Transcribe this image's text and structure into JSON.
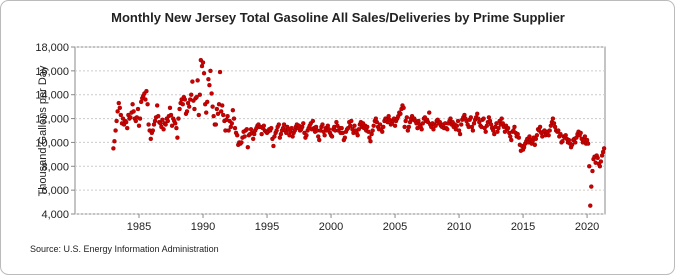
{
  "chart_data": {
    "type": "scatter",
    "title": "Monthly New Jersey Total Gasoline All Sales/Deliveries by Prime Supplier",
    "y_label": "Thousand Gallons per Day",
    "source": "Source: U.S. Energy Information Administration",
    "color": "#cc0000",
    "grid": true,
    "xlim": [
      1980,
      2021.4
    ],
    "xticks": [
      1985,
      1990,
      1995,
      2000,
      2005,
      2010,
      2015,
      2020
    ],
    "ylim": [
      4000,
      18000
    ],
    "yticks": [
      {
        "value": 4000,
        "label": "4,000"
      },
      {
        "value": 6000,
        "label": "6,000"
      },
      {
        "value": 8000,
        "label": "8,000"
      },
      {
        "value": 10000,
        "label": "10,000"
      },
      {
        "value": 12000,
        "label": "12,000"
      },
      {
        "value": 14000,
        "label": "14,000"
      },
      {
        "value": 16000,
        "label": "16,000"
      },
      {
        "value": 18000,
        "label": "18,000"
      }
    ],
    "x": [
      1983,
      1983.08,
      1983.17,
      1983.25,
      1983.33,
      1983.42,
      1983.5,
      1983.58,
      1983.67,
      1983.75,
      1983.83,
      1983.92,
      1984,
      1984.08,
      1984.17,
      1984.25,
      1984.33,
      1984.42,
      1984.5,
      1984.58,
      1984.67,
      1984.75,
      1984.83,
      1984.92,
      1985,
      1985.08,
      1985.17,
      1985.25,
      1985.33,
      1985.42,
      1985.5,
      1985.58,
      1985.67,
      1985.75,
      1985.83,
      1985.92,
      1986,
      1986.08,
      1986.17,
      1986.25,
      1986.33,
      1986.42,
      1986.5,
      1986.58,
      1986.67,
      1986.75,
      1986.83,
      1986.92,
      1987,
      1987.08,
      1987.17,
      1987.25,
      1987.33,
      1987.42,
      1987.5,
      1987.58,
      1987.67,
      1987.75,
      1987.83,
      1987.92,
      1988,
      1988.08,
      1988.17,
      1988.25,
      1988.33,
      1988.42,
      1988.5,
      1988.58,
      1988.67,
      1988.75,
      1988.83,
      1988.92,
      1989,
      1989.08,
      1989.17,
      1989.25,
      1989.33,
      1989.42,
      1989.5,
      1989.58,
      1989.67,
      1989.75,
      1989.83,
      1989.92,
      1990,
      1990.08,
      1990.17,
      1990.25,
      1990.33,
      1990.42,
      1990.5,
      1990.58,
      1990.67,
      1990.75,
      1990.83,
      1990.92,
      1991,
      1991.08,
      1991.17,
      1991.25,
      1991.33,
      1991.42,
      1991.5,
      1991.58,
      1991.67,
      1991.75,
      1991.83,
      1991.92,
      1992,
      1992.08,
      1992.17,
      1992.25,
      1992.33,
      1992.42,
      1992.5,
      1992.58,
      1992.67,
      1992.75,
      1992.83,
      1992.92,
      1993,
      1993.08,
      1993.17,
      1993.25,
      1993.33,
      1993.42,
      1993.5,
      1993.58,
      1993.67,
      1993.75,
      1993.83,
      1993.92,
      1994,
      1994.08,
      1994.17,
      1994.25,
      1994.33,
      1994.42,
      1994.5,
      1994.58,
      1994.67,
      1994.75,
      1994.83,
      1994.92,
      1995,
      1995.08,
      1995.17,
      1995.25,
      1995.33,
      1995.42,
      1995.5,
      1995.58,
      1995.67,
      1995.75,
      1995.83,
      1995.92,
      1996,
      1996.08,
      1996.17,
      1996.25,
      1996.33,
      1996.42,
      1996.5,
      1996.58,
      1996.67,
      1996.75,
      1996.83,
      1996.92,
      1997,
      1997.08,
      1997.17,
      1997.25,
      1997.33,
      1997.42,
      1997.5,
      1997.58,
      1997.67,
      1997.75,
      1997.83,
      1997.92,
      1998,
      1998.08,
      1998.17,
      1998.25,
      1998.33,
      1998.42,
      1998.5,
      1998.58,
      1998.67,
      1998.75,
      1998.83,
      1998.92,
      1999,
      1999.08,
      1999.17,
      1999.25,
      1999.33,
      1999.42,
      1999.5,
      1999.58,
      1999.67,
      1999.75,
      1999.83,
      1999.92,
      2000,
      2000.08,
      2000.17,
      2000.25,
      2000.33,
      2000.42,
      2000.5,
      2000.58,
      2000.67,
      2000.75,
      2000.83,
      2000.92,
      2001,
      2001.08,
      2001.17,
      2001.25,
      2001.33,
      2001.42,
      2001.5,
      2001.58,
      2001.67,
      2001.75,
      2001.83,
      2001.92,
      2002,
      2002.08,
      2002.17,
      2002.25,
      2002.33,
      2002.42,
      2002.5,
      2002.58,
      2002.67,
      2002.75,
      2002.83,
      2002.92,
      2003,
      2003.08,
      2003.17,
      2003.25,
      2003.33,
      2003.42,
      2003.5,
      2003.58,
      2003.67,
      2003.75,
      2003.83,
      2003.92,
      2004,
      2004.08,
      2004.17,
      2004.25,
      2004.33,
      2004.42,
      2004.5,
      2004.58,
      2004.67,
      2004.75,
      2004.83,
      2004.92,
      2005,
      2005.08,
      2005.17,
      2005.25,
      2005.33,
      2005.42,
      2005.5,
      2005.58,
      2005.67,
      2005.75,
      2005.83,
      2005.92,
      2006,
      2006.08,
      2006.17,
      2006.25,
      2006.33,
      2006.42,
      2006.5,
      2006.58,
      2006.67,
      2006.75,
      2006.83,
      2006.92,
      2007,
      2007.08,
      2007.17,
      2007.25,
      2007.33,
      2007.42,
      2007.5,
      2007.58,
      2007.67,
      2007.75,
      2007.83,
      2007.92,
      2008,
      2008.08,
      2008.17,
      2008.25,
      2008.33,
      2008.42,
      2008.5,
      2008.58,
      2008.67,
      2008.75,
      2008.83,
      2008.92,
      2009,
      2009.08,
      2009.17,
      2009.25,
      2009.33,
      2009.42,
      2009.5,
      2009.58,
      2009.67,
      2009.75,
      2009.83,
      2009.92,
      2010,
      2010.08,
      2010.17,
      2010.25,
      2010.33,
      2010.42,
      2010.5,
      2010.58,
      2010.67,
      2010.75,
      2010.83,
      2010.92,
      2011,
      2011.08,
      2011.17,
      2011.25,
      2011.33,
      2011.42,
      2011.5,
      2011.58,
      2011.67,
      2011.75,
      2011.83,
      2011.92,
      2012,
      2012.08,
      2012.17,
      2012.25,
      2012.33,
      2012.42,
      2012.5,
      2012.58,
      2012.67,
      2012.75,
      2012.83,
      2012.92,
      2013,
      2013.08,
      2013.17,
      2013.25,
      2013.33,
      2013.42,
      2013.5,
      2013.58,
      2013.67,
      2013.75,
      2013.83,
      2013.92,
      2014,
      2014.08,
      2014.17,
      2014.25,
      2014.33,
      2014.42,
      2014.5,
      2014.58,
      2014.67,
      2014.75,
      2014.83,
      2014.92,
      2015,
      2015.08,
      2015.17,
      2015.25,
      2015.33,
      2015.42,
      2015.5,
      2015.58,
      2015.67,
      2015.75,
      2015.83,
      2015.92,
      2016,
      2016.08,
      2016.17,
      2016.25,
      2016.33,
      2016.42,
      2016.5,
      2016.58,
      2016.67,
      2016.75,
      2016.83,
      2016.92,
      2017,
      2017.08,
      2017.17,
      2017.25,
      2017.33,
      2017.42,
      2017.5,
      2017.58,
      2017.67,
      2017.75,
      2017.83,
      2017.92,
      2018,
      2018.08,
      2018.17,
      2018.25,
      2018.33,
      2018.42,
      2018.5,
      2018.58,
      2018.67,
      2018.75,
      2018.83,
      2018.92,
      2019,
      2019.08,
      2019.17,
      2019.25,
      2019.33,
      2019.42,
      2019.5,
      2019.58,
      2019.67,
      2019.75,
      2019.83,
      2019.92,
      2020,
      2020.08,
      2020.17,
      2020.25,
      2020.33,
      2020.42,
      2020.5,
      2020.58,
      2020.67,
      2020.75,
      2020.83,
      2020.92,
      2021,
      2021.08,
      2021.17,
      2021.25,
      2021.33
    ],
    "values": [
      9500,
      10100,
      11000,
      11800,
      12600,
      13300,
      12900,
      12300,
      11600,
      12000,
      11500,
      11800,
      11700,
      11200,
      12300,
      12000,
      12100,
      12500,
      13200,
      12600,
      12000,
      11800,
      12100,
      12800,
      11400,
      12000,
      13400,
      13700,
      13900,
      14100,
      13600,
      14300,
      13200,
      11500,
      11000,
      10300,
      10800,
      11000,
      11500,
      11800,
      12100,
      13100,
      12200,
      11700,
      11600,
      11300,
      11900,
      11100,
      11600,
      11500,
      12000,
      11800,
      12200,
      12900,
      12300,
      11400,
      12000,
      11800,
      11600,
      11200,
      10400,
      12000,
      12800,
      13300,
      13600,
      13200,
      13800,
      13600,
      12400,
      12600,
      13300,
      13000,
      13600,
      14000,
      15100,
      13500,
      12800,
      13700,
      13800,
      15200,
      12300,
      14000,
      16900,
      16400,
      16700,
      15800,
      13200,
      12500,
      13400,
      15300,
      14800,
      16000,
      14100,
      13000,
      12200,
      11500,
      11500,
      12800,
      12400,
      13200,
      15900,
      12600,
      13100,
      12300,
      11800,
      11000,
      11900,
      12200,
      11000,
      11800,
      11300,
      11600,
      12700,
      12000,
      11200,
      10800,
      10600,
      9800,
      10000,
      9900,
      10000,
      10400,
      10900,
      10500,
      11000,
      11100,
      9600,
      10600,
      10700,
      11100,
      10800,
      10300,
      10700,
      11000,
      11200,
      11400,
      11500,
      11300,
      11300,
      10700,
      11200,
      11400,
      11000,
      10900,
      10800,
      10900,
      11100,
      11000,
      11200,
      10300,
      9700,
      10500,
      10800,
      11000,
      11300,
      11500,
      10400,
      10700,
      11000,
      11200,
      11500,
      11000,
      10800,
      11300,
      11100,
      10600,
      10900,
      11200,
      10500,
      10800,
      11000,
      11300,
      11500,
      11200,
      11400,
      11000,
      11100,
      11300,
      11600,
      10800,
      10400,
      10600,
      11000,
      11200,
      11400,
      11600,
      11100,
      11800,
      11200,
      10900,
      11300,
      11000,
      10500,
      10200,
      11000,
      11300,
      11500,
      10900,
      10600,
      11200,
      11000,
      11400,
      11100,
      10800,
      10600,
      10500,
      11100,
      11300,
      11000,
      11700,
      11400,
      11000,
      11200,
      10800,
      11200,
      10800,
      10200,
      10400,
      10900,
      11100,
      11200,
      11700,
      11400,
      11800,
      11100,
      10800,
      11400,
      11000,
      10800,
      10600,
      11100,
      11500,
      11700,
      11300,
      11600,
      11200,
      11400,
      11000,
      11300,
      10900,
      10400,
      10100,
      10700,
      11000,
      11400,
      11800,
      12000,
      11700,
      11300,
      11100,
      11500,
      11100,
      10900,
      11300,
      11800,
      12000,
      11900,
      11700,
      12200,
      11900,
      11500,
      11600,
      11800,
      12000,
      11400,
      11800,
      12000,
      12200,
      12500,
      12400,
      12800,
      13100,
      12900,
      11300,
      11800,
      12100,
      11000,
      11300,
      11700,
      12000,
      12200,
      11900,
      12000,
      11800,
      11600,
      11200,
      11800,
      11500,
      11300,
      11100,
      11600,
      12000,
      12100,
      11800,
      11900,
      11700,
      12500,
      11500,
      11300,
      11600,
      11100,
      11500,
      11400,
      11800,
      11900,
      11600,
      11700,
      11400,
      11300,
      11500,
      11200,
      11600,
      11200,
      11100,
      11600,
      11800,
      12000,
      11500,
      11700,
      11300,
      11500,
      11100,
      11400,
      11800,
      11000,
      10700,
      11500,
      11900,
      12100,
      12300,
      12000,
      11800,
      11500,
      11300,
      11900,
      12100,
      11300,
      11000,
      11600,
      11900,
      12100,
      12400,
      12000,
      11700,
      11400,
      11300,
      11900,
      12000,
      11200,
      10900,
      11400,
      11700,
      12100,
      11800,
      11500,
      11200,
      11000,
      10700,
      11300,
      11600,
      10900,
      11200,
      11800,
      11500,
      12000,
      11600,
      11300,
      10900,
      11400,
      11100,
      11200,
      10800,
      10500,
      10200,
      10900,
      11000,
      11300,
      10800,
      10500,
      10700,
      10400,
      9800,
      9300,
      9700,
      9400,
      9600,
      9900,
      10100,
      10300,
      10000,
      10500,
      10200,
      9900,
      10100,
      10400,
      9800,
      10300,
      10600,
      11100,
      11000,
      11300,
      10800,
      10500,
      10900,
      11000,
      10600,
      10700,
      10900,
      10600,
      11000,
      11400,
      11700,
      12000,
      11600,
      11300,
      11000,
      10900,
      11000,
      10500,
      10700,
      10000,
      10100,
      10500,
      10400,
      10600,
      10300,
      10000,
      10200,
      9900,
      9600,
      9800,
      10200,
      10300,
      10000,
      10400,
      10700,
      10900,
      10600,
      10800,
      10300,
      10000,
      10200,
      10500,
      9900,
      10200,
      9900,
      8000,
      4700,
      6300,
      7600,
      8600,
      8800,
      8300,
      8900,
      8700,
      8200,
      8000,
      8400,
      8900,
      9200,
      9500
    ]
  }
}
